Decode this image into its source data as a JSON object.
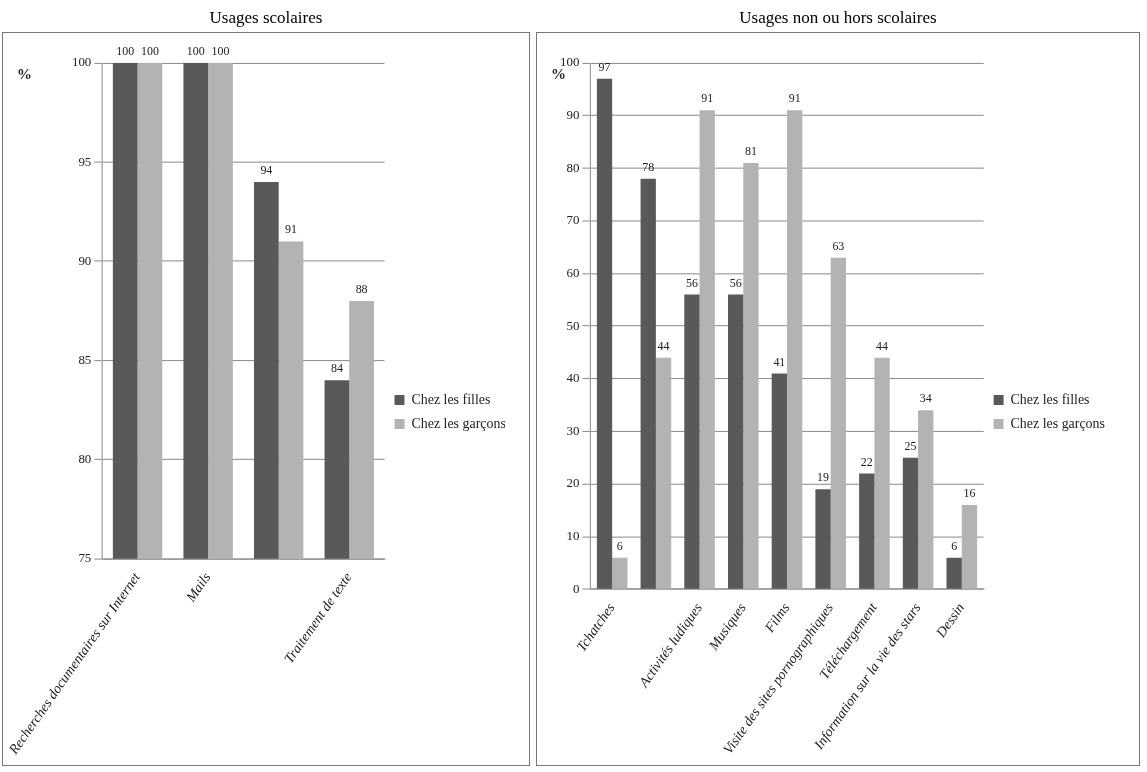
{
  "chart_data": [
    {
      "type": "bar",
      "title": "Usages scolaires",
      "ylabel": "%",
      "categories": [
        "Recherches documentaires sur Internet",
        "Mails",
        null,
        "Traitement de texte"
      ],
      "series": [
        {
          "name": "Chez les filles",
          "color": "#595959",
          "values": [
            100,
            100,
            94,
            84
          ]
        },
        {
          "name": "Chez les garçons",
          "color": "#b3b3b3",
          "values": [
            100,
            100,
            91,
            88
          ]
        }
      ],
      "ylim": [
        75,
        100
      ],
      "yticks": [
        75,
        80,
        85,
        90,
        95,
        100
      ],
      "grid": "y",
      "legend": "right",
      "data_labels": true
    },
    {
      "type": "bar",
      "title": "Usages non ou hors scolaires",
      "ylabel": "%",
      "categories": [
        "Tchatches",
        null,
        "Activités ludiques",
        "Musiques",
        "Films",
        "Visite des sites pornographiques",
        "Téléchargement",
        "Information sur la vie des stars",
        "Dessin"
      ],
      "series": [
        {
          "name": "Chez les filles",
          "color": "#595959",
          "values": [
            97,
            78,
            56,
            56,
            41,
            19,
            22,
            25,
            6
          ]
        },
        {
          "name": "Chez les garçons",
          "color": "#b3b3b3",
          "values": [
            6,
            44,
            91,
            81,
            91,
            63,
            44,
            34,
            16
          ]
        }
      ],
      "ylim": [
        0,
        100
      ],
      "yticks": [
        0,
        10,
        20,
        30,
        40,
        50,
        60,
        70,
        80,
        90,
        100
      ],
      "grid": "y",
      "legend": "right",
      "data_labels": true
    }
  ]
}
